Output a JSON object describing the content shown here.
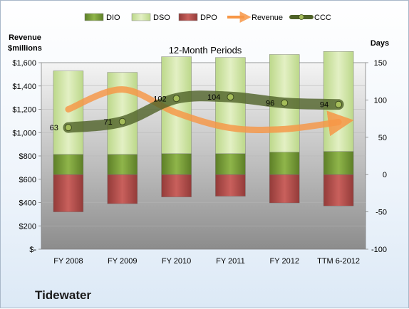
{
  "company": "Tidewater",
  "chart_data": {
    "type": "bar",
    "title": "12-Month Periods",
    "left_axis_label": [
      "Revenue",
      "$millions"
    ],
    "right_axis_label": "Days",
    "categories": [
      "FY 2008",
      "FY 2009",
      "FY 2010",
      "FY 2011",
      "FY 2012",
      "TTM 6-2012"
    ],
    "left_ticks": [
      "$-",
      "$200",
      "$400",
      "$600",
      "$800",
      "$1,000",
      "$1,200",
      "$1,400",
      "$1,600"
    ],
    "right_ticks": [
      "-100",
      "-50",
      "0",
      "50",
      "100",
      "150"
    ],
    "left_ylim": [
      0,
      1600
    ],
    "right_ylim": [
      -100,
      150
    ],
    "legend": {
      "position": "top",
      "items": [
        "DIO",
        "DSO",
        "DPO",
        "Revenue",
        "CCC"
      ]
    },
    "series": [
      {
        "name": "DIO",
        "axis": "right",
        "values": [
          27,
          27,
          28,
          28,
          30,
          31
        ]
      },
      {
        "name": "DSO",
        "axis": "right",
        "values": [
          112,
          110,
          130,
          129,
          131,
          134
        ]
      },
      {
        "name": "DPO",
        "axis": "right",
        "values": [
          -50,
          -39,
          -30,
          -29,
          -38,
          -42
        ]
      },
      {
        "name": "Revenue",
        "axis": "left",
        "values": [
          1200,
          1370,
          1170,
          1040,
          1030,
          1090
        ]
      },
      {
        "name": "CCC",
        "axis": "right",
        "values": [
          63,
          71,
          102,
          104,
          96,
          94
        ]
      }
    ],
    "data_labels": [
      "63",
      "71",
      "102",
      "104",
      "96",
      "94"
    ],
    "colors": {
      "DIO": "#7fa63c",
      "DSO": "#d6e8a6",
      "DPO": "#c0504d",
      "Revenue": "#f79646",
      "CCC": "#4f6228",
      "plot_background": "#9e9e9e"
    },
    "grid": true
  }
}
